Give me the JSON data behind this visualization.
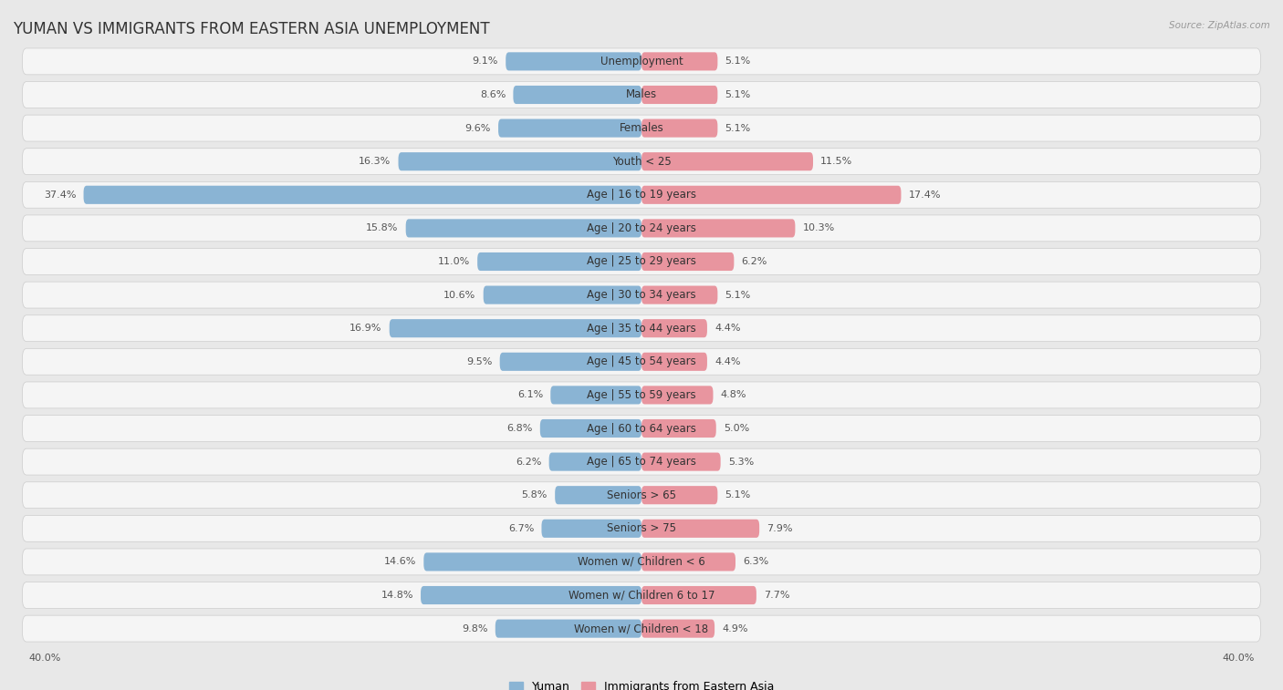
{
  "title": "YUMAN VS IMMIGRANTS FROM EASTERN ASIA UNEMPLOYMENT",
  "source": "Source: ZipAtlas.com",
  "categories": [
    "Unemployment",
    "Males",
    "Females",
    "Youth < 25",
    "Age | 16 to 19 years",
    "Age | 20 to 24 years",
    "Age | 25 to 29 years",
    "Age | 30 to 34 years",
    "Age | 35 to 44 years",
    "Age | 45 to 54 years",
    "Age | 55 to 59 years",
    "Age | 60 to 64 years",
    "Age | 65 to 74 years",
    "Seniors > 65",
    "Seniors > 75",
    "Women w/ Children < 6",
    "Women w/ Children 6 to 17",
    "Women w/ Children < 18"
  ],
  "yuman_values": [
    9.1,
    8.6,
    9.6,
    16.3,
    37.4,
    15.8,
    11.0,
    10.6,
    16.9,
    9.5,
    6.1,
    6.8,
    6.2,
    5.8,
    6.7,
    14.6,
    14.8,
    9.8
  ],
  "immigrant_values": [
    5.1,
    5.1,
    5.1,
    11.5,
    17.4,
    10.3,
    6.2,
    5.1,
    4.4,
    4.4,
    4.8,
    5.0,
    5.3,
    5.1,
    7.9,
    6.3,
    7.7,
    4.9
  ],
  "yuman_color": "#8ab4d4",
  "immigrant_color": "#e8959f",
  "yuman_label": "Yuman",
  "immigrant_label": "Immigrants from Eastern Asia",
  "axis_max": 40.0,
  "background_color": "#e8e8e8",
  "bar_background": "#f5f5f5",
  "title_fontsize": 12,
  "label_fontsize": 8.5,
  "value_fontsize": 8.0
}
